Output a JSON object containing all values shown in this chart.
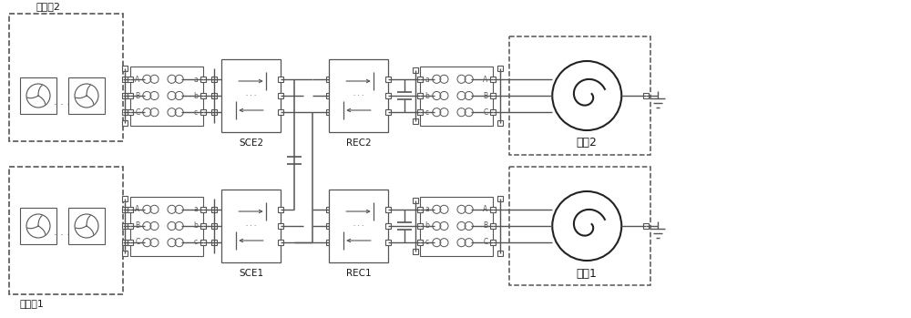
{
  "bg_color": "#ffffff",
  "line_color": "#555555",
  "text_color": "#1a1a1a",
  "dashed_color": "#555555",
  "figsize": [
    10.0,
    3.49
  ],
  "dpi": 100,
  "wind_farm2_label": "风电场2",
  "wind_farm1_label": "风电场1",
  "grid2_label": "电儶2",
  "grid1_label": "电儶1",
  "sce2_label": "SCE2",
  "sce1_label": "SCE1",
  "rec2_label": "REC2",
  "rec1_label": "REC1"
}
